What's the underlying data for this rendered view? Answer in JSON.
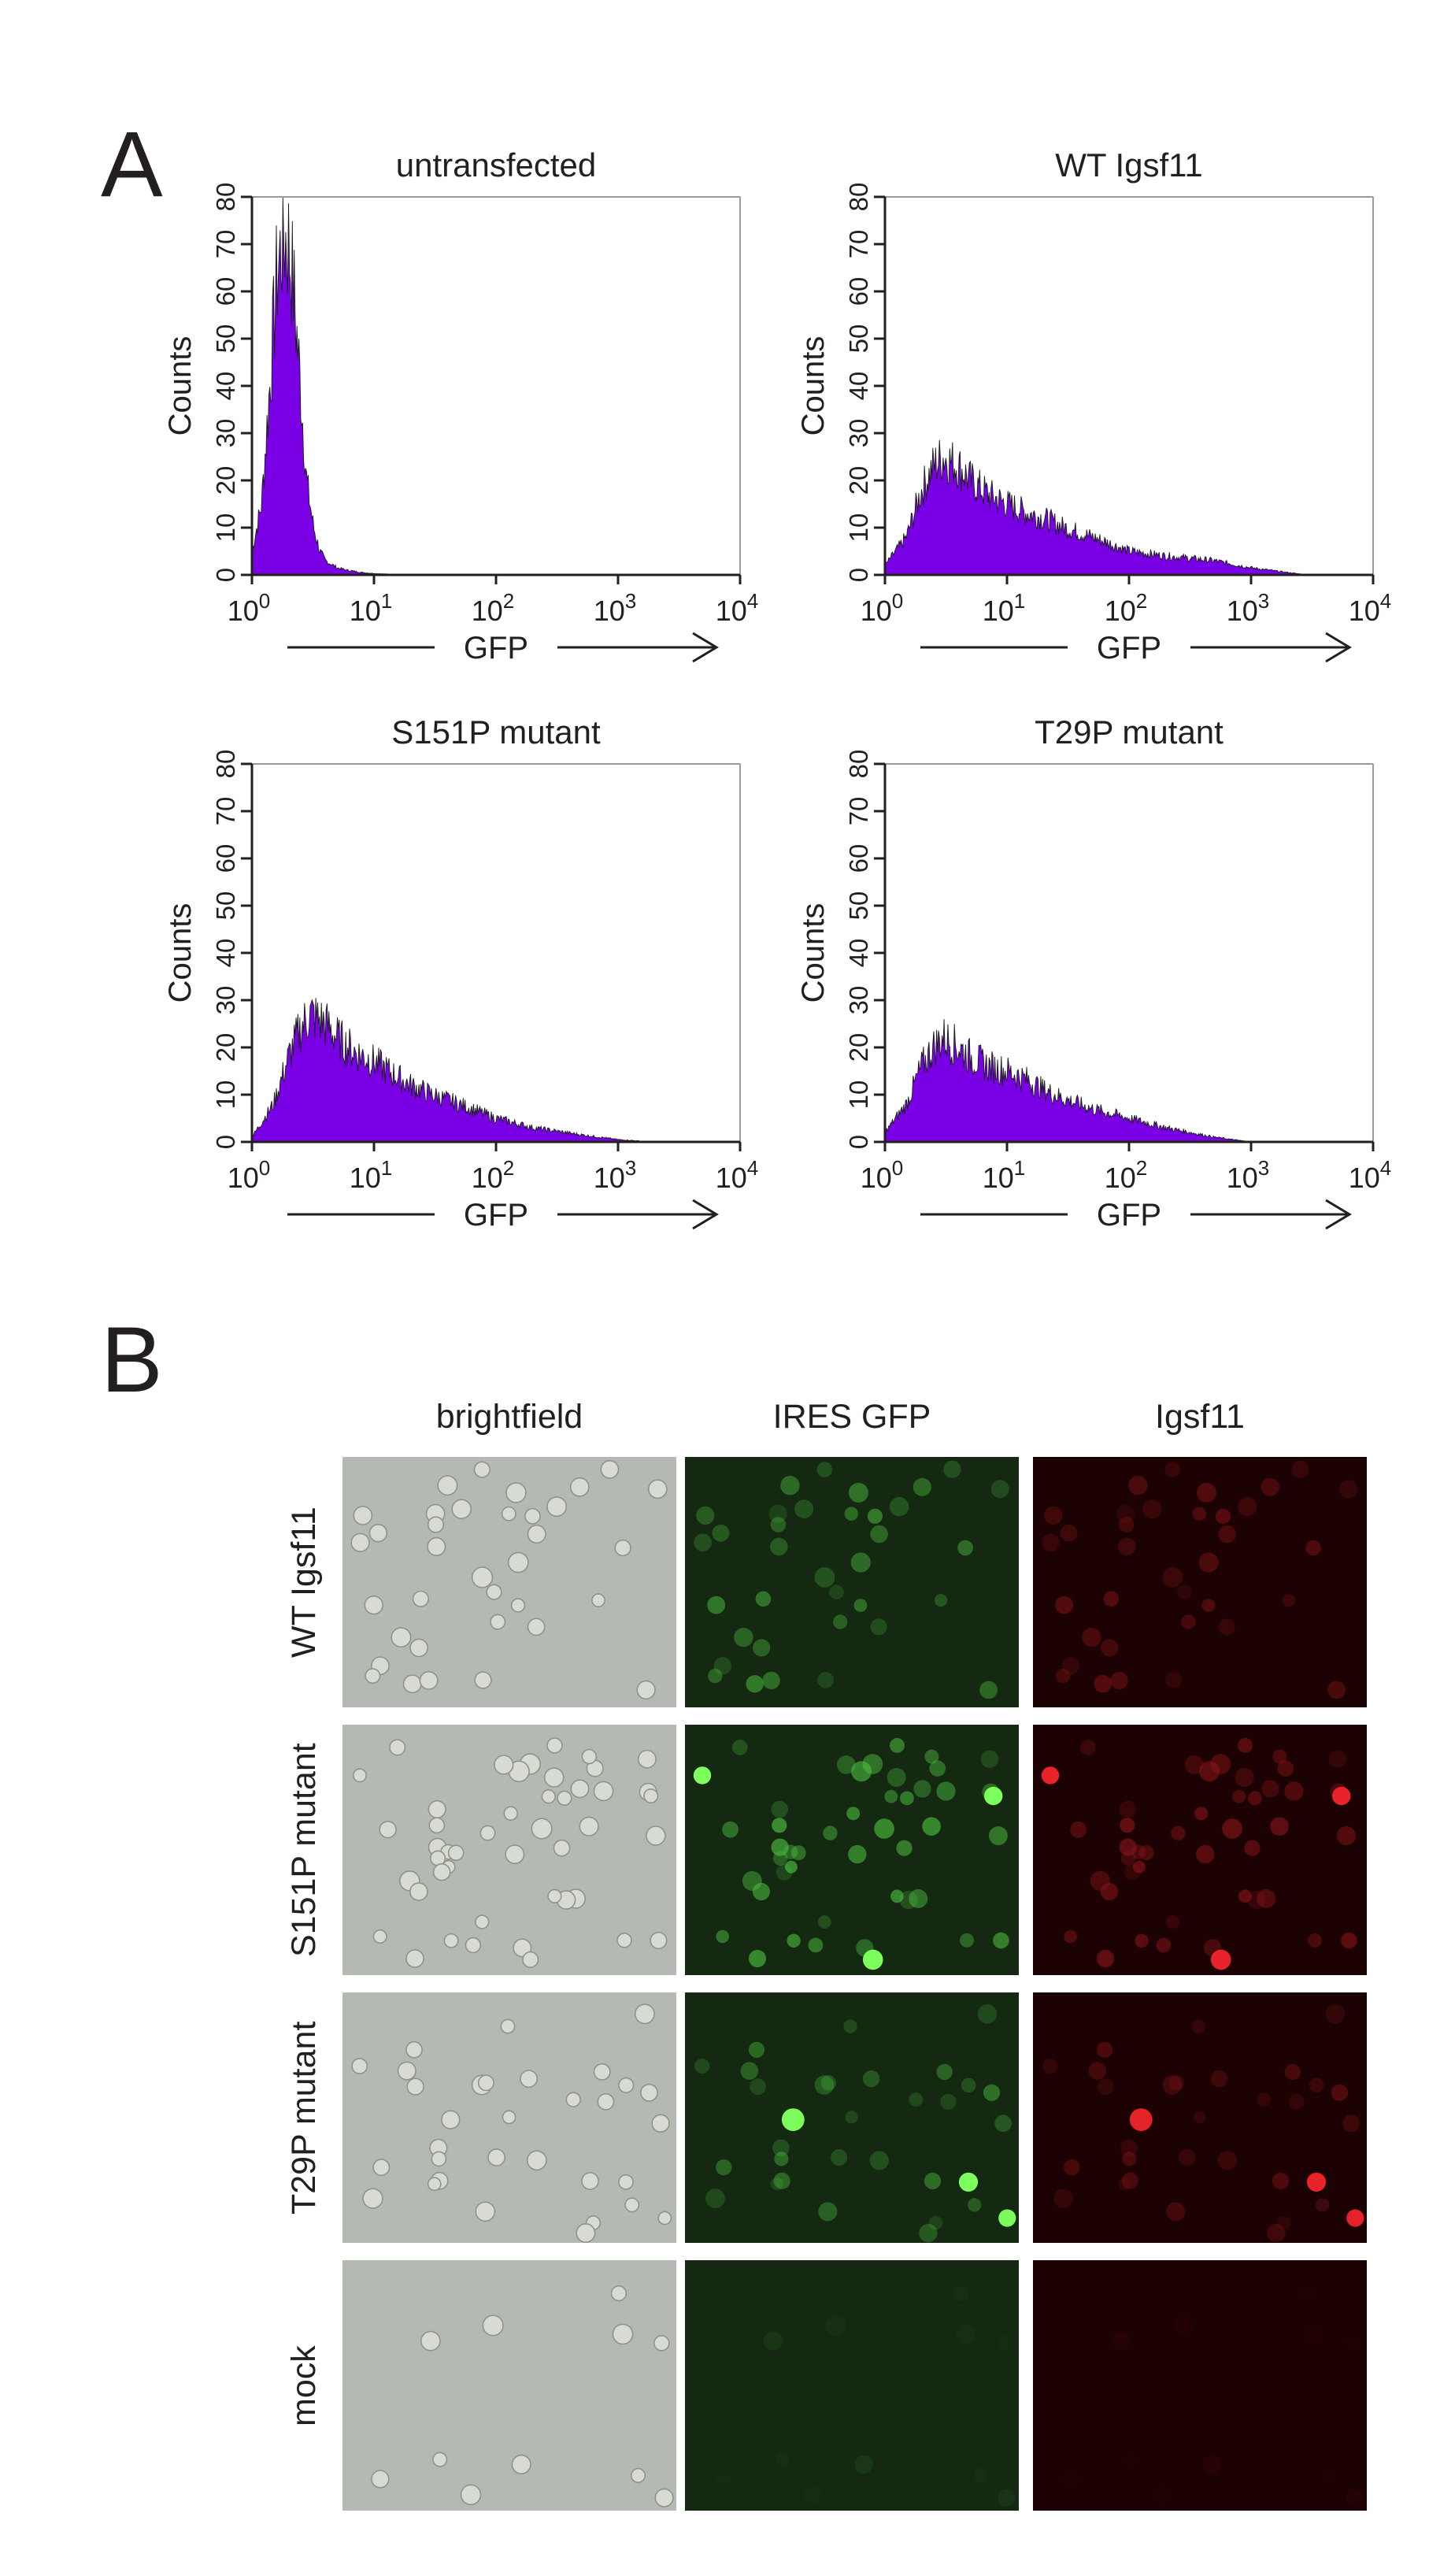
{
  "figure": {
    "panel_a_letter": "A",
    "panel_b_letter": "B",
    "colors": {
      "histogram_fill": "#7a00e6",
      "histogram_edge": "#1a1a1a",
      "axis": "#231f20"
    }
  },
  "chart_data": [
    {
      "type": "area",
      "title": "untransfected",
      "xlabel": "GFP",
      "ylabel": "Counts",
      "x_scale": "log",
      "xlim": [
        1,
        10000
      ],
      "ylim": [
        0,
        80
      ],
      "y_ticks": [
        "0",
        "10",
        "20",
        "30",
        "40",
        "50",
        "60",
        "70",
        "80"
      ],
      "x_ticks": [
        {
          "base": "10",
          "exp": "0"
        },
        {
          "base": "10",
          "exp": "1"
        },
        {
          "base": "10",
          "exp": "2"
        },
        {
          "base": "10",
          "exp": "3"
        },
        {
          "base": "10",
          "exp": "4"
        }
      ],
      "x": [
        1,
        1.2,
        1.4,
        1.6,
        1.8,
        2,
        2.2,
        2.5,
        2.8,
        3.2,
        3.6,
        4,
        5,
        6,
        8,
        10,
        15,
        20
      ],
      "y": [
        5,
        15,
        40,
        63,
        72,
        70,
        60,
        40,
        20,
        10,
        5,
        3,
        1.5,
        1,
        0.5,
        0.3,
        0.1,
        0
      ],
      "grid": false
    },
    {
      "type": "area",
      "title": "WT Igsf11",
      "xlabel": "GFP",
      "ylabel": "Counts",
      "x_scale": "log",
      "xlim": [
        1,
        10000
      ],
      "ylim": [
        0,
        80
      ],
      "y_ticks": [
        "0",
        "10",
        "20",
        "30",
        "40",
        "50",
        "60",
        "70",
        "80"
      ],
      "x_ticks": [
        {
          "base": "10",
          "exp": "0"
        },
        {
          "base": "10",
          "exp": "1"
        },
        {
          "base": "10",
          "exp": "2"
        },
        {
          "base": "10",
          "exp": "3"
        },
        {
          "base": "10",
          "exp": "4"
        }
      ],
      "x": [
        1,
        1.5,
        2,
        2.5,
        3,
        4,
        5,
        7,
        10,
        15,
        20,
        30,
        50,
        80,
        100,
        200,
        500,
        1000,
        2000,
        3000
      ],
      "y": [
        2,
        8,
        18,
        23,
        25,
        23,
        20,
        17,
        15,
        13,
        12,
        10,
        8,
        6,
        5,
        4,
        3,
        1.5,
        0.5,
        0
      ],
      "grid": false
    },
    {
      "type": "area",
      "title": "S151P mutant",
      "xlabel": "GFP",
      "ylabel": "Counts",
      "x_scale": "log",
      "xlim": [
        1,
        10000
      ],
      "ylim": [
        0,
        80
      ],
      "y_ticks": [
        "0",
        "10",
        "20",
        "30",
        "40",
        "50",
        "60",
        "70",
        "80"
      ],
      "x_ticks": [
        {
          "base": "10",
          "exp": "0"
        },
        {
          "base": "10",
          "exp": "1"
        },
        {
          "base": "10",
          "exp": "2"
        },
        {
          "base": "10",
          "exp": "3"
        },
        {
          "base": "10",
          "exp": "4"
        }
      ],
      "x": [
        1,
        1.5,
        2,
        2.5,
        3,
        4,
        5,
        7,
        10,
        15,
        20,
        30,
        50,
        100,
        200,
        500,
        1000,
        2000
      ],
      "y": [
        1,
        8,
        18,
        24,
        27,
        25,
        22,
        19,
        17,
        14,
        12,
        10,
        8,
        5,
        3,
        1.5,
        0.5,
        0
      ],
      "grid": false
    },
    {
      "type": "area",
      "title": "T29P mutant",
      "xlabel": "GFP",
      "ylabel": "Counts",
      "x_scale": "log",
      "xlim": [
        1,
        10000
      ],
      "ylim": [
        0,
        80
      ],
      "y_ticks": [
        "0",
        "10",
        "20",
        "30",
        "40",
        "50",
        "60",
        "70",
        "80"
      ],
      "x_ticks": [
        {
          "base": "10",
          "exp": "0"
        },
        {
          "base": "10",
          "exp": "1"
        },
        {
          "base": "10",
          "exp": "2"
        },
        {
          "base": "10",
          "exp": "3"
        },
        {
          "base": "10",
          "exp": "4"
        }
      ],
      "x": [
        1,
        1.5,
        2,
        2.5,
        3,
        4,
        5,
        7,
        10,
        15,
        20,
        30,
        50,
        100,
        200,
        500,
        1000
      ],
      "y": [
        2,
        8,
        16,
        20,
        22,
        20,
        18,
        16,
        15,
        13,
        11,
        9,
        7,
        5,
        3,
        1,
        0
      ],
      "grid": false
    }
  ],
  "micrographs": {
    "columns": [
      "brightfield",
      "IRES GFP",
      "Igsf11"
    ],
    "rows": [
      "WT Igsf11",
      "S151P mutant",
      "T29P mutant",
      "mock"
    ],
    "column_colors": {
      "brightfield": {
        "bg": "#b4bab3",
        "cell": "#d8dbd2",
        "edge": "#8e9488"
      },
      "IRES GFP": {
        "bg": "#142812",
        "cell": "#4dc23f",
        "bright": "#7dff5c"
      },
      "Igsf11": {
        "bg": "#1c0203",
        "cell": "#8a1518",
        "bright": "#e8242a"
      }
    },
    "cell_density": {
      "WT Igsf11": 0.5,
      "S151P mutant": 0.65,
      "T29P mutant": 0.45,
      "mock": 0.15
    },
    "fluorescence_level": {
      "WT Igsf11": 0.65,
      "S151P mutant": 0.8,
      "T29P mutant": 0.6,
      "mock": 0.12
    }
  }
}
